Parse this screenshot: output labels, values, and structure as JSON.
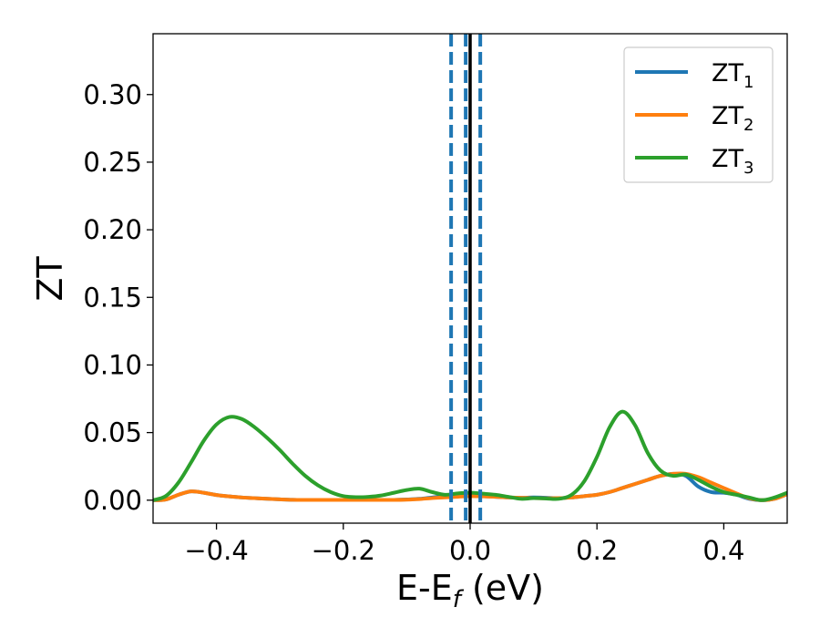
{
  "chart_data": {
    "type": "line",
    "xlabel_main": "E-E",
    "xlabel_sub": "f",
    "xlabel_unit": " (eV)",
    "ylabel": "ZT",
    "xlim": [
      -0.5,
      0.5
    ],
    "ylim": [
      -0.017,
      0.345
    ],
    "x_ticks": [
      -0.4,
      -0.2,
      0.0,
      0.2,
      0.4
    ],
    "x_tick_labels": [
      "−0.4",
      "−0.2",
      "0.0",
      "0.2",
      "0.4"
    ],
    "y_ticks": [
      0.0,
      0.05,
      0.1,
      0.15,
      0.2,
      0.25,
      0.3
    ],
    "y_tick_labels": [
      "0.00",
      "0.05",
      "0.10",
      "0.15",
      "0.20",
      "0.25",
      "0.30"
    ],
    "grid": false,
    "legend_position": "top-right",
    "vertical_lines": [
      {
        "x": -0.03,
        "style": "dashed",
        "color": "#1f77b4"
      },
      {
        "x": -0.007,
        "style": "dashed",
        "color": "#1f77b4"
      },
      {
        "x": 0.016,
        "style": "dashed",
        "color": "#1f77b4"
      },
      {
        "x": 0.0,
        "style": "solid",
        "color": "#000000"
      }
    ],
    "series": [
      {
        "name_main": "ZT",
        "name_sub": "1",
        "color": "#1f77b4",
        "x": [
          -0.5,
          -0.48,
          -0.46,
          -0.44,
          -0.42,
          -0.4,
          -0.38,
          -0.36,
          -0.34,
          -0.32,
          -0.3,
          -0.28,
          -0.26,
          -0.24,
          -0.22,
          -0.2,
          -0.18,
          -0.16,
          -0.14,
          -0.12,
          -0.1,
          -0.08,
          -0.06,
          -0.04,
          -0.02,
          0.0,
          0.02,
          0.04,
          0.06,
          0.08,
          0.1,
          0.12,
          0.14,
          0.16,
          0.18,
          0.2,
          0.22,
          0.24,
          0.26,
          0.28,
          0.3,
          0.32,
          0.34,
          0.36,
          0.38,
          0.4,
          0.42,
          0.44,
          0.46,
          0.48,
          0.5
        ],
        "y": [
          0.0,
          0.0005,
          0.004,
          0.0065,
          0.0055,
          0.0038,
          0.0028,
          0.002,
          0.0015,
          0.001,
          0.0006,
          0.0003,
          0.0002,
          0.0002,
          0.0002,
          0.0002,
          0.0002,
          0.0002,
          0.0002,
          0.0002,
          0.0005,
          0.001,
          0.002,
          0.003,
          0.0035,
          0.004,
          0.003,
          0.0025,
          0.002,
          0.0018,
          0.002,
          0.0018,
          0.0015,
          0.002,
          0.003,
          0.004,
          0.006,
          0.009,
          0.012,
          0.015,
          0.018,
          0.0195,
          0.018,
          0.01,
          0.006,
          0.0055,
          0.004,
          0.001,
          0.0,
          0.001,
          0.0045
        ]
      },
      {
        "name_main": "ZT",
        "name_sub": "2",
        "color": "#ff7f0e",
        "x": [
          -0.5,
          -0.48,
          -0.46,
          -0.44,
          -0.42,
          -0.4,
          -0.38,
          -0.36,
          -0.34,
          -0.32,
          -0.3,
          -0.28,
          -0.26,
          -0.24,
          -0.22,
          -0.2,
          -0.18,
          -0.16,
          -0.14,
          -0.12,
          -0.1,
          -0.08,
          -0.06,
          -0.04,
          -0.02,
          0.0,
          0.02,
          0.04,
          0.06,
          0.08,
          0.1,
          0.12,
          0.14,
          0.16,
          0.18,
          0.2,
          0.22,
          0.24,
          0.26,
          0.28,
          0.3,
          0.32,
          0.34,
          0.36,
          0.38,
          0.4,
          0.42,
          0.44,
          0.46,
          0.48,
          0.5
        ],
        "y": [
          0.0,
          0.0005,
          0.004,
          0.0065,
          0.0055,
          0.0038,
          0.0028,
          0.002,
          0.0015,
          0.001,
          0.0006,
          0.0003,
          0.0002,
          0.0002,
          0.0002,
          0.0002,
          0.0002,
          0.0002,
          0.0002,
          0.0002,
          0.0004,
          0.0008,
          0.0015,
          0.002,
          0.0025,
          0.003,
          0.0028,
          0.0025,
          0.002,
          0.0018,
          0.0015,
          0.0014,
          0.0015,
          0.002,
          0.003,
          0.004,
          0.006,
          0.009,
          0.012,
          0.015,
          0.018,
          0.0195,
          0.0195,
          0.017,
          0.013,
          0.009,
          0.005,
          0.0015,
          0.0,
          0.001,
          0.0045
        ]
      },
      {
        "name_main": "ZT",
        "name_sub": "3",
        "color": "#2ca02c",
        "x": [
          -0.5,
          -0.48,
          -0.46,
          -0.44,
          -0.42,
          -0.4,
          -0.38,
          -0.36,
          -0.34,
          -0.32,
          -0.3,
          -0.28,
          -0.26,
          -0.24,
          -0.22,
          -0.2,
          -0.18,
          -0.16,
          -0.14,
          -0.12,
          -0.1,
          -0.08,
          -0.06,
          -0.04,
          -0.02,
          0.0,
          0.02,
          0.04,
          0.06,
          0.08,
          0.1,
          0.12,
          0.14,
          0.16,
          0.18,
          0.2,
          0.22,
          0.24,
          0.26,
          0.28,
          0.3,
          0.32,
          0.34,
          0.36,
          0.38,
          0.4,
          0.42,
          0.44,
          0.46,
          0.48,
          0.5
        ],
        "y": [
          0.0,
          0.003,
          0.013,
          0.028,
          0.044,
          0.056,
          0.0615,
          0.06,
          0.054,
          0.046,
          0.037,
          0.027,
          0.018,
          0.011,
          0.006,
          0.003,
          0.0022,
          0.0025,
          0.0035,
          0.0055,
          0.0075,
          0.0085,
          0.006,
          0.004,
          0.005,
          0.0055,
          0.0048,
          0.004,
          0.0025,
          0.001,
          0.0015,
          0.0012,
          0.001,
          0.004,
          0.014,
          0.032,
          0.054,
          0.0655,
          0.0555,
          0.035,
          0.022,
          0.018,
          0.019,
          0.015,
          0.01,
          0.006,
          0.004,
          0.002,
          0.0,
          0.002,
          0.0055
        ]
      }
    ]
  }
}
